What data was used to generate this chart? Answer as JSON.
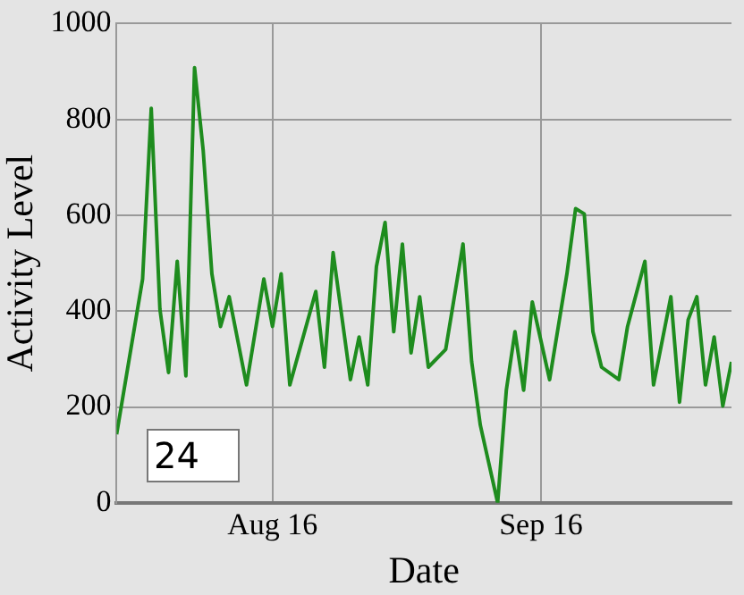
{
  "chart_data": {
    "type": "line",
    "xlabel": "Date",
    "ylabel": "Activity Level",
    "color": "#1e8c1e",
    "grid": true,
    "marker": "none",
    "line_style": "solid",
    "annotations": [
      "24"
    ],
    "x": [
      "--07-29",
      "--08-01",
      "--08-02",
      "--08-03",
      "--08-04",
      "--08-05",
      "--08-06",
      "--08-07",
      "--08-08",
      "--08-09",
      "--08-10",
      "--08-11",
      "--08-13",
      "--08-15",
      "--08-16",
      "--08-17",
      "--08-18",
      "--08-21",
      "--08-22",
      "--08-23",
      "--08-25",
      "--08-26",
      "--08-27",
      "--08-28",
      "--08-29",
      "--08-30",
      "--08-31",
      "--09-01",
      "--09-02",
      "--09-03",
      "--09-05",
      "--09-07",
      "--09-08",
      "--09-09",
      "--09-11",
      "--09-12",
      "--09-13",
      "--09-14",
      "--09-15",
      "--09-17",
      "--09-19",
      "--09-20",
      "--09-21",
      "--09-22",
      "--09-23",
      "--09-25",
      "--09-26",
      "--09-28",
      "--09-29",
      "--10-01",
      "--10-02",
      "--10-03",
      "--10-04",
      "--10-05",
      "--10-06",
      "--10-07",
      "--10-08"
    ],
    "values": [
      143,
      467,
      823,
      404,
      272,
      504,
      265,
      908,
      735,
      478,
      368,
      430,
      246,
      467,
      368,
      478,
      246,
      441,
      283,
      522,
      257,
      346,
      246,
      493,
      585,
      357,
      540,
      313,
      430,
      283,
      320,
      540,
      294,
      162,
      0,
      235,
      357,
      235,
      419,
      257,
      478,
      614,
      603,
      357,
      283,
      257,
      368,
      504,
      246,
      430,
      210,
      382,
      430,
      246,
      346,
      202,
      294
    ],
    "xlim": [
      "--07-29",
      "--10-08"
    ],
    "xticks": [
      {
        "value": "--08-16",
        "label": "Aug 16"
      },
      {
        "value": "--09-16",
        "label": "Sep 16"
      }
    ],
    "ylim": [
      0,
      1000
    ],
    "yticks": [
      0,
      200,
      400,
      600,
      800,
      1000
    ]
  }
}
